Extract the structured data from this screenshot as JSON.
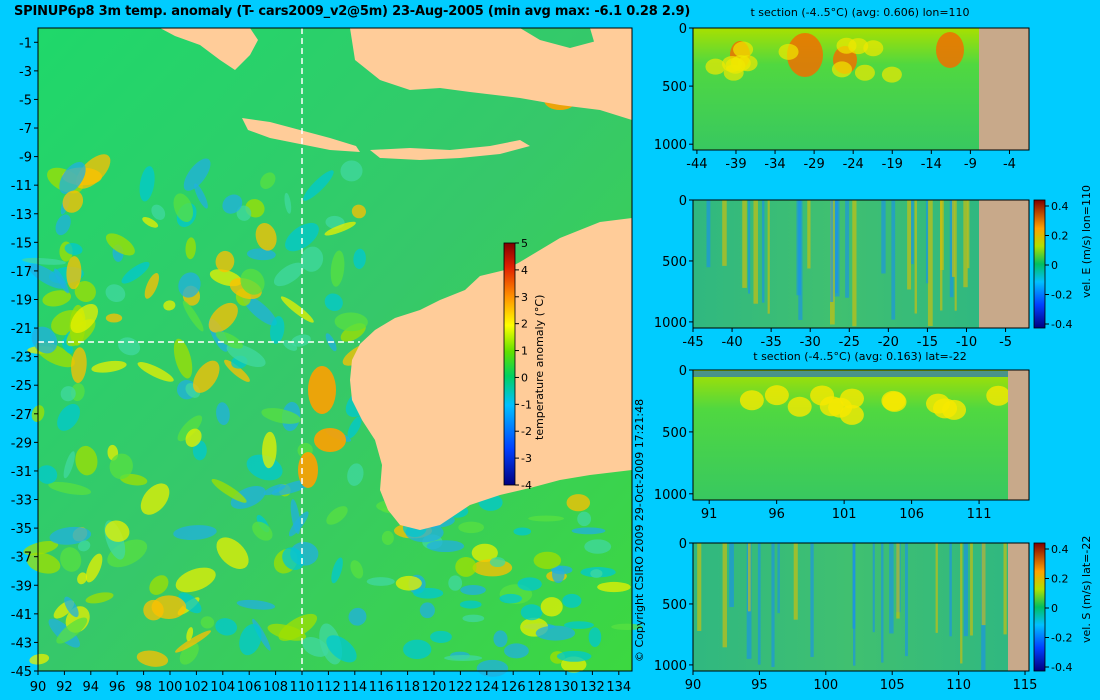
{
  "header": {
    "title": "SPINUP6p8 3m temp. anomaly (T- cars2009_v2@5m) 23-Aug-2005 (min avg max: -6.1 0.28 2.9)",
    "copyright": "© Copyright CSIRO 2009   29-Oct-2009 17:21:48"
  },
  "colors": {
    "background": "#00ccff",
    "land": "#ffcc99",
    "section_land": "#c8a98a",
    "crosshair": "#ffffff"
  },
  "chart_data": [
    {
      "type": "heatmap",
      "id": "map",
      "title": "SPINUP6p8 3m temp. anomaly (T- cars2009_v2@5m) 23-Aug-2005 (min avg max: -6.1 0.28 2.9)",
      "xlim": [
        90,
        135
      ],
      "ylim": [
        -45,
        0
      ],
      "x_ticks": [
        "90",
        "92",
        "94",
        "96",
        "98",
        "100",
        "102",
        "104",
        "106",
        "108",
        "110",
        "112",
        "114",
        "116",
        "118",
        "120",
        "122",
        "124",
        "126",
        "128",
        "130",
        "132",
        "134"
      ],
      "y_ticks": [
        "-1",
        "-3",
        "-5",
        "-7",
        "-9",
        "-11",
        "-13",
        "-15",
        "-17",
        "-19",
        "-21",
        "-23",
        "-25",
        "-27",
        "-29",
        "-31",
        "-33",
        "-35",
        "-37",
        "-39",
        "-41",
        "-43",
        "-45"
      ],
      "crosshair": {
        "lon": 110,
        "lat": -22
      },
      "colorbar": {
        "label": "temperature anomaly (°C)",
        "range": [
          -4,
          5
        ],
        "ticks": [
          "5",
          "4",
          "3",
          "2",
          "1",
          "0",
          "-1",
          "-2",
          "-3",
          "-4"
        ]
      }
    },
    {
      "type": "heatmap",
      "id": "t-section-lon",
      "title": "t section (-4..5°C) (avg: 0.606) lon=110",
      "x_ticks": [
        "-44",
        "-39",
        "-34",
        "-29",
        "-24",
        "-19",
        "-14",
        "-9",
        "-4"
      ],
      "y_ticks": [
        "0",
        "500",
        "1000"
      ]
    },
    {
      "type": "heatmap",
      "id": "vel-e-section",
      "title": "",
      "x_ticks": [
        "-45",
        "-40",
        "-35",
        "-30",
        "-25",
        "-20",
        "-15",
        "-10",
        "-5"
      ],
      "y_ticks": [
        "0",
        "500",
        "1000"
      ],
      "colorbar": {
        "label": "vel. E (m/s) lon=110",
        "range": [
          -0.4,
          0.4
        ],
        "ticks": [
          "0.4",
          "0.2",
          "0",
          "-0.2",
          "-0.4"
        ]
      }
    },
    {
      "type": "heatmap",
      "id": "t-section-lat",
      "title": "t section (-4..5°C) (avg: 0.163) lat=-22",
      "x_ticks": [
        "91",
        "96",
        "101",
        "106",
        "111"
      ],
      "y_ticks": [
        "0",
        "500",
        "1000"
      ]
    },
    {
      "type": "heatmap",
      "id": "vel-s-section",
      "title": "",
      "x_ticks": [
        "90",
        "95",
        "100",
        "105",
        "110",
        "115"
      ],
      "y_ticks": [
        "0",
        "500",
        "1000"
      ],
      "colorbar": {
        "label": "vel. S (m/s) lat=-22",
        "range": [
          -0.4,
          0.4
        ],
        "ticks": [
          "0.4",
          "0.2",
          "0",
          "-0.2",
          "-0.4"
        ]
      }
    }
  ]
}
